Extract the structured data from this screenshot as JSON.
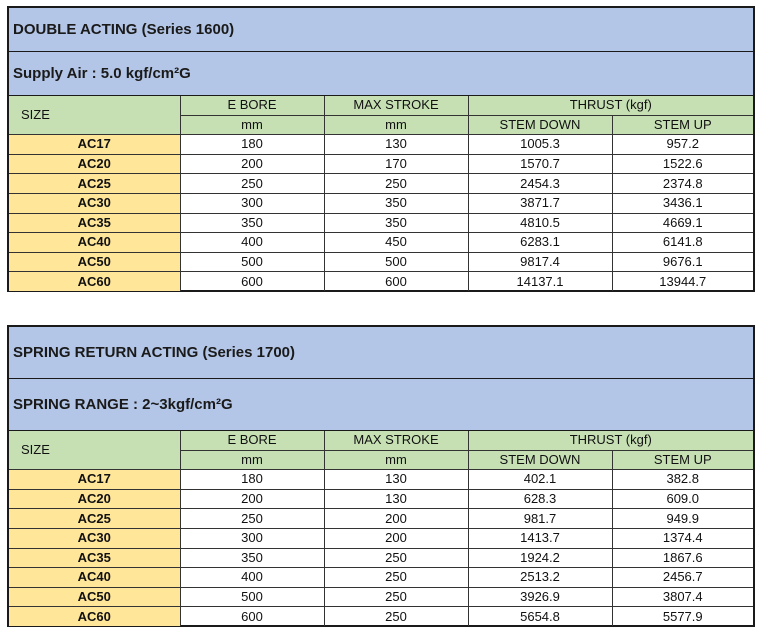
{
  "tables": [
    {
      "title": "DOUBLE ACTING (Series 1600)",
      "subtitle": "Supply Air : 5.0 kgf/cm²G",
      "headers": {
        "size": "SIZE",
        "bore": "E BORE",
        "stroke": "MAX STROKE",
        "thrust": "THRUST (kgf)",
        "bore_unit": "mm",
        "stroke_unit": "mm",
        "down": "STEM DOWN",
        "up": "STEM UP"
      },
      "rows": [
        [
          "AC17",
          "180",
          "130",
          "1005.3",
          "957.2"
        ],
        [
          "AC20",
          "200",
          "170",
          "1570.7",
          "1522.6"
        ],
        [
          "AC25",
          "250",
          "250",
          "2454.3",
          "2374.8"
        ],
        [
          "AC30",
          "300",
          "350",
          "3871.7",
          "3436.1"
        ],
        [
          "AC35",
          "350",
          "350",
          "4810.5",
          "4669.1"
        ],
        [
          "AC40",
          "400",
          "450",
          "6283.1",
          "6141.8"
        ],
        [
          "AC50",
          "500",
          "500",
          "9817.4",
          "9676.1"
        ],
        [
          "AC60",
          "600",
          "600",
          "14137.1",
          "13944.7"
        ]
      ]
    },
    {
      "title": "SPRING RETURN ACTING (Series 1700)",
      "subtitle": "SPRING RANGE : 2~3kgf/cm²G",
      "headers": {
        "size": "SIZE",
        "bore": "E BORE",
        "stroke": "MAX STROKE",
        "thrust": "THRUST (kgf)",
        "bore_unit": "mm",
        "stroke_unit": "mm",
        "down": "STEM DOWN",
        "up": "STEM UP"
      },
      "rows": [
        [
          "AC17",
          "180",
          "130",
          "402.1",
          "382.8"
        ],
        [
          "AC20",
          "200",
          "130",
          "628.3",
          "609.0"
        ],
        [
          "AC25",
          "250",
          "200",
          "981.7",
          "949.9"
        ],
        [
          "AC30",
          "300",
          "200",
          "1413.7",
          "1374.4"
        ],
        [
          "AC35",
          "350",
          "250",
          "1924.2",
          "1867.6"
        ],
        [
          "AC40",
          "400",
          "250",
          "2513.2",
          "2456.7"
        ],
        [
          "AC50",
          "500",
          "250",
          "3926.9",
          "3807.4"
        ],
        [
          "AC60",
          "600",
          "250",
          "5654.8",
          "5577.9"
        ]
      ]
    }
  ]
}
